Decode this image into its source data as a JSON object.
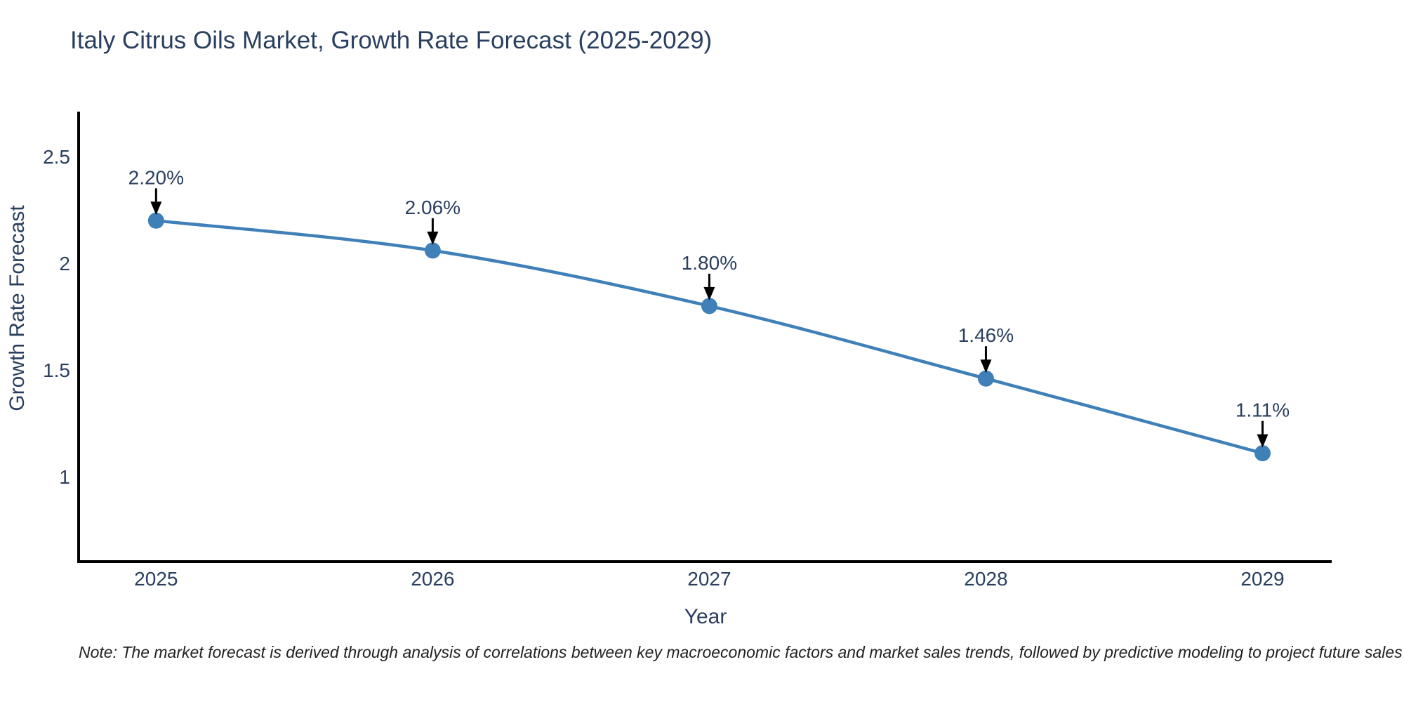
{
  "title": "Italy Citrus Oils Market, Growth Rate Forecast (2025-2029)",
  "footnote": "Note: The market forecast is derived through analysis of correlations between key macroeconomic factors and market sales trends, followed by predictive modeling to project future sales",
  "chart_data": {
    "type": "line",
    "title": "Italy Citrus Oils Market, Growth Rate Forecast (2025-2029)",
    "xlabel": "Year",
    "ylabel": "Growth Rate Forecast",
    "x": [
      2025,
      2026,
      2027,
      2028,
      2029
    ],
    "x_tick_labels": [
      "2025",
      "2026",
      "2027",
      "2028",
      "2029"
    ],
    "series": [
      {
        "name": "Growth Rate Forecast",
        "values": [
          2.2,
          2.06,
          1.8,
          1.46,
          1.11
        ]
      }
    ],
    "point_labels": [
      "2.20%",
      "2.06%",
      "1.80%",
      "1.46%",
      "1.11%"
    ],
    "ytick_values": [
      1,
      1.5,
      2,
      2.5
    ],
    "ytick_labels": [
      "1",
      "1.5",
      "2",
      "2.5"
    ],
    "ylim": [
      0.602,
      2.711
    ],
    "xlim": [
      2024.72,
      2029.25
    ],
    "grid": false,
    "legend": "none",
    "line_shape": "spline",
    "colors": {
      "line": "#3f80b8",
      "marker": "#3f80b8",
      "axis": "#000000",
      "tick_text": "#2a3f5f",
      "title_text": "#2a3f5f",
      "annotation_text": "#2a3f5f",
      "annotation_arrow": "#000000",
      "background": "#ffffff"
    }
  }
}
